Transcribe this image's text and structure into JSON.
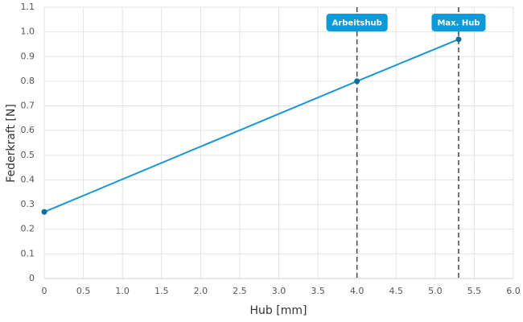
{
  "chart_data": {
    "type": "line",
    "xlabel": "Hub [mm]",
    "ylabel": "Federkraft [N]",
    "x": [
      0,
      4.0,
      5.3
    ],
    "values": [
      0.27,
      0.8,
      0.97
    ],
    "color": "#1a96d4",
    "marker_color": "#0b6f9c",
    "xlim": [
      0,
      6
    ],
    "ylim": [
      0,
      1.1
    ],
    "xticks": [
      0,
      0.5,
      {
        "value": 1,
        "label": "1.0"
      },
      1.5,
      {
        "value": 2,
        "label": "2.0"
      },
      2.5,
      {
        "value": 3,
        "label": "3.0"
      },
      3.5,
      {
        "value": 4,
        "label": "4.0"
      },
      4.5,
      {
        "value": 5,
        "label": "5.0"
      },
      5.5,
      {
        "value": 6,
        "label": "6.0"
      }
    ],
    "yticks": [
      0,
      0.1,
      0.2,
      0.3,
      0.4,
      0.5,
      0.6,
      0.7,
      0.8,
      0.9,
      {
        "value": 1,
        "label": "1.0"
      },
      1.1
    ],
    "grid": true,
    "annotations": [
      {
        "x": 4.0,
        "label": "Arbeitshub"
      },
      {
        "x": 5.3,
        "label": "Max. Hub"
      }
    ],
    "annotation_color": "#0d9ad8"
  }
}
